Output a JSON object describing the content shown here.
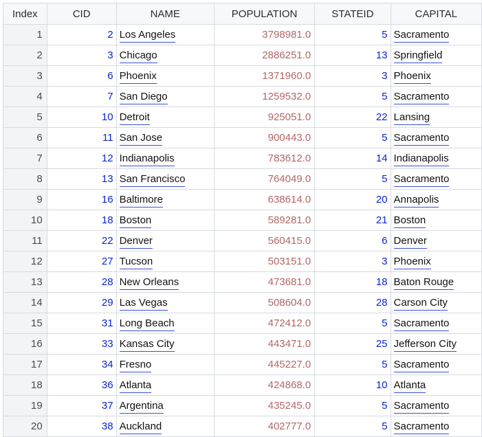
{
  "colors": {
    "accent_link": "#3a4fd8",
    "id_text": "#0a24d6",
    "population_text": "#b36666"
  },
  "columns": [
    "Index",
    "CID",
    "NAME",
    "POPULATION",
    "STATEID",
    "CAPITAL"
  ],
  "rows": [
    {
      "index": "1",
      "cid": "2",
      "name": "Los Angeles",
      "population": "3798981.0",
      "stateid": "5",
      "capital": "Sacramento"
    },
    {
      "index": "2",
      "cid": "3",
      "name": "Chicago",
      "population": "2886251.0",
      "stateid": "13",
      "capital": "Springfield"
    },
    {
      "index": "3",
      "cid": "6",
      "name": "Phoenix",
      "population": "1371960.0",
      "stateid": "3",
      "capital": "Phoenix"
    },
    {
      "index": "4",
      "cid": "7",
      "name": "San Diego",
      "population": "1259532.0",
      "stateid": "5",
      "capital": "Sacramento"
    },
    {
      "index": "5",
      "cid": "10",
      "name": "Detroit",
      "population": "925051.0",
      "stateid": "22",
      "capital": "Lansing"
    },
    {
      "index": "6",
      "cid": "11",
      "name": "San Jose",
      "population": "900443.0",
      "stateid": "5",
      "capital": "Sacramento"
    },
    {
      "index": "7",
      "cid": "12",
      "name": "Indianapolis",
      "population": "783612.0",
      "stateid": "14",
      "capital": "Indianapolis"
    },
    {
      "index": "8",
      "cid": "13",
      "name": "San Francisco",
      "population": "764049.0",
      "stateid": "5",
      "capital": "Sacramento"
    },
    {
      "index": "9",
      "cid": "16",
      "name": "Baltimore",
      "population": "638614.0",
      "stateid": "20",
      "capital": "Annapolis"
    },
    {
      "index": "10",
      "cid": "18",
      "name": "Boston",
      "population": "589281.0",
      "stateid": "21",
      "capital": "Boston"
    },
    {
      "index": "11",
      "cid": "22",
      "name": "Denver",
      "population": "560415.0",
      "stateid": "6",
      "capital": "Denver"
    },
    {
      "index": "12",
      "cid": "27",
      "name": "Tucson",
      "population": "503151.0",
      "stateid": "3",
      "capital": "Phoenix"
    },
    {
      "index": "13",
      "cid": "28",
      "name": "New Orleans",
      "population": "473681.0",
      "stateid": "18",
      "capital": "Baton Rouge"
    },
    {
      "index": "14",
      "cid": "29",
      "name": "Las Vegas",
      "population": "508604.0",
      "stateid": "28",
      "capital": "Carson City"
    },
    {
      "index": "15",
      "cid": "31",
      "name": "Long Beach",
      "population": "472412.0",
      "stateid": "5",
      "capital": "Sacramento"
    },
    {
      "index": "16",
      "cid": "33",
      "name": "Kansas City",
      "population": "443471.0",
      "stateid": "25",
      "capital": "Jefferson City"
    },
    {
      "index": "17",
      "cid": "34",
      "name": "Fresno",
      "population": "445227.0",
      "stateid": "5",
      "capital": "Sacramento"
    },
    {
      "index": "18",
      "cid": "36",
      "name": "Atlanta",
      "population": "424868.0",
      "stateid": "10",
      "capital": "Atlanta"
    },
    {
      "index": "19",
      "cid": "37",
      "name": "Argentina",
      "population": "435245.0",
      "stateid": "5",
      "capital": "Sacramento"
    },
    {
      "index": "20",
      "cid": "38",
      "name": "Auckland",
      "population": "402777.0",
      "stateid": "5",
      "capital": "Sacramento"
    }
  ]
}
